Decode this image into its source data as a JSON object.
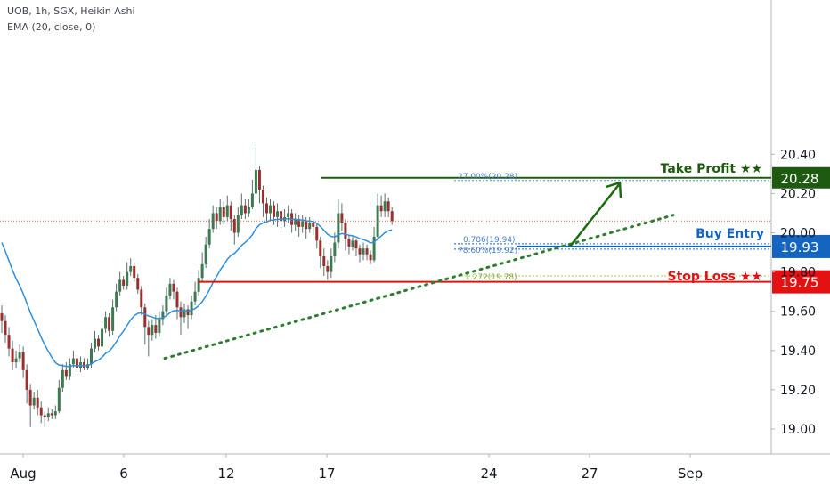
{
  "header": {
    "line1": "UOB, 1h, SGX, Heikin Ashi",
    "line2": "EMA (20, close, 0)"
  },
  "chart_data": {
    "type": "candlestick",
    "ylim": [
      18.95,
      20.48
    ],
    "y_ticks": [
      {
        "label": "20.40",
        "value": 20.4
      },
      {
        "label": "20.20",
        "value": 20.2
      },
      {
        "label": "20.00",
        "value": 20.0
      },
      {
        "label": "19.80",
        "value": 19.8
      },
      {
        "label": "19.60",
        "value": 19.6
      },
      {
        "label": "19.40",
        "value": 19.4
      },
      {
        "label": "19.20",
        "value": 19.2
      },
      {
        "label": "19.00",
        "value": 19.0
      }
    ],
    "x_ticks": [
      "Aug",
      "6",
      "12",
      "17",
      "24",
      "27",
      "Sep"
    ],
    "current_price": 20.06,
    "candles": [
      [
        19.59,
        19.55,
        19.63,
        19.49
      ],
      [
        19.55,
        19.48,
        19.58,
        19.44
      ],
      [
        19.48,
        19.41,
        19.52,
        19.37
      ],
      [
        19.41,
        19.34,
        19.45,
        19.3
      ],
      [
        19.34,
        19.36,
        19.4,
        19.31
      ],
      [
        19.36,
        19.39,
        19.43,
        19.34
      ],
      [
        19.39,
        19.3,
        19.42,
        19.26
      ],
      [
        19.3,
        19.2,
        19.33,
        19.13
      ],
      [
        19.2,
        19.12,
        19.23,
        19.01
      ],
      [
        19.12,
        19.16,
        19.19,
        19.1
      ],
      [
        19.16,
        19.11,
        19.2,
        19.07
      ],
      [
        19.11,
        19.07,
        19.14,
        19.03
      ],
      [
        19.07,
        19.06,
        19.09,
        19.01
      ],
      [
        19.06,
        19.08,
        19.11,
        19.04
      ],
      [
        19.08,
        19.07,
        19.1,
        19.05
      ],
      [
        19.07,
        19.09,
        19.12,
        19.05
      ],
      [
        19.09,
        19.21,
        19.25,
        19.08
      ],
      [
        19.21,
        19.3,
        19.33,
        19.19
      ],
      [
        19.3,
        19.27,
        19.34,
        19.25
      ],
      [
        19.27,
        19.33,
        19.36,
        19.25
      ],
      [
        19.33,
        19.36,
        19.4,
        19.31
      ],
      [
        19.36,
        19.31,
        19.38,
        19.29
      ],
      [
        19.31,
        19.34,
        19.37,
        19.29
      ],
      [
        19.34,
        19.31,
        19.36,
        19.3
      ],
      [
        19.31,
        19.33,
        19.36,
        19.3
      ],
      [
        19.33,
        19.41,
        19.44,
        19.31
      ],
      [
        19.41,
        19.46,
        19.5,
        19.39
      ],
      [
        19.46,
        19.42,
        19.48,
        19.4
      ],
      [
        19.42,
        19.51,
        19.55,
        19.41
      ],
      [
        19.51,
        19.57,
        19.6,
        19.49
      ],
      [
        19.57,
        19.5,
        19.59,
        19.47
      ],
      [
        19.5,
        19.62,
        19.66,
        19.48
      ],
      [
        19.62,
        19.7,
        19.74,
        19.6
      ],
      [
        19.7,
        19.76,
        19.8,
        19.68
      ],
      [
        19.76,
        19.73,
        19.78,
        19.71
      ],
      [
        19.73,
        19.8,
        19.85,
        19.71
      ],
      [
        19.8,
        19.83,
        19.87,
        19.78
      ],
      [
        19.83,
        19.77,
        19.85,
        19.75
      ],
      [
        19.77,
        19.71,
        19.79,
        19.69
      ],
      [
        19.71,
        19.62,
        19.73,
        19.58
      ],
      [
        19.62,
        19.52,
        19.64,
        19.43
      ],
      [
        19.52,
        19.48,
        19.55,
        19.37
      ],
      [
        19.48,
        19.53,
        19.56,
        19.45
      ],
      [
        19.53,
        19.49,
        19.58,
        19.46
      ],
      [
        19.49,
        19.56,
        19.6,
        19.47
      ],
      [
        19.56,
        19.6,
        19.63,
        19.53
      ],
      [
        19.6,
        19.68,
        19.72,
        19.58
      ],
      [
        19.68,
        19.74,
        19.77,
        19.66
      ],
      [
        19.74,
        19.7,
        19.76,
        19.66
      ],
      [
        19.7,
        19.62,
        19.72,
        19.56
      ],
      [
        19.62,
        19.57,
        19.65,
        19.48
      ],
      [
        19.57,
        19.61,
        19.64,
        19.54
      ],
      [
        19.61,
        19.58,
        19.63,
        19.51
      ],
      [
        19.58,
        19.65,
        19.68,
        19.56
      ],
      [
        19.65,
        19.7,
        19.75,
        19.63
      ],
      [
        19.7,
        19.77,
        19.81,
        19.68
      ],
      [
        19.77,
        19.84,
        19.9,
        19.75
      ],
      [
        19.84,
        19.94,
        19.98,
        19.82
      ],
      [
        19.94,
        20.02,
        20.07,
        19.92
      ],
      [
        20.02,
        20.1,
        20.14,
        20.0
      ],
      [
        20.1,
        20.06,
        20.13,
        20.02
      ],
      [
        20.06,
        20.13,
        20.17,
        20.04
      ],
      [
        20.13,
        20.08,
        20.16,
        20.04
      ],
      [
        20.08,
        20.14,
        20.19,
        20.06
      ],
      [
        20.14,
        20.07,
        20.16,
        20.01
      ],
      [
        20.07,
        20.0,
        20.09,
        19.94
      ],
      [
        20.0,
        20.09,
        20.13,
        19.98
      ],
      [
        20.09,
        20.14,
        20.2,
        20.07
      ],
      [
        20.14,
        20.1,
        20.17,
        20.07
      ],
      [
        20.1,
        20.13,
        20.17,
        20.08
      ],
      [
        20.13,
        20.2,
        20.27,
        20.12
      ],
      [
        20.2,
        20.32,
        20.45,
        20.18
      ],
      [
        20.32,
        20.22,
        20.34,
        20.15
      ],
      [
        20.22,
        20.15,
        20.24,
        20.08
      ],
      [
        20.15,
        20.1,
        20.18,
        20.06
      ],
      [
        20.1,
        20.14,
        20.17,
        20.06
      ],
      [
        20.14,
        20.08,
        20.16,
        20.04
      ],
      [
        20.08,
        20.11,
        20.15,
        20.03
      ],
      [
        20.11,
        20.06,
        20.13,
        20.0
      ],
      [
        20.06,
        20.08,
        20.12,
        20.03
      ],
      [
        20.08,
        20.1,
        20.14,
        20.05
      ],
      [
        20.1,
        20.04,
        20.12,
        20.0
      ],
      [
        20.04,
        20.07,
        20.1,
        20.01
      ],
      [
        20.07,
        20.03,
        20.09,
        19.98
      ],
      [
        20.03,
        20.06,
        20.09,
        20.0
      ],
      [
        20.06,
        20.02,
        20.08,
        19.97
      ],
      [
        20.02,
        20.05,
        20.08,
        20.0
      ],
      [
        20.05,
        20.03,
        20.07,
        19.99
      ],
      [
        20.03,
        19.96,
        20.05,
        19.92
      ],
      [
        19.96,
        19.88,
        19.98,
        19.82
      ],
      [
        19.88,
        19.83,
        19.92,
        19.78
      ],
      [
        19.83,
        19.8,
        19.86,
        19.76
      ],
      [
        19.8,
        19.88,
        19.92,
        19.77
      ],
      [
        19.88,
        19.95,
        20.0,
        19.85
      ],
      [
        19.95,
        20.1,
        20.17,
        19.92
      ],
      [
        20.1,
        20.05,
        20.15,
        20.01
      ],
      [
        20.05,
        19.97,
        20.07,
        19.91
      ],
      [
        19.97,
        19.93,
        19.99,
        19.89
      ],
      [
        19.93,
        19.96,
        19.98,
        19.91
      ],
      [
        19.96,
        19.92,
        19.97,
        19.88
      ],
      [
        19.92,
        19.89,
        19.94,
        19.85
      ],
      [
        19.89,
        19.92,
        19.95,
        19.86
      ],
      [
        19.92,
        19.89,
        19.94,
        19.86
      ],
      [
        19.89,
        19.86,
        19.91,
        19.84
      ],
      [
        19.86,
        19.98,
        20.03,
        19.85
      ],
      [
        19.98,
        20.14,
        20.2,
        19.96
      ],
      [
        20.14,
        20.11,
        20.19,
        20.08
      ],
      [
        20.11,
        20.16,
        20.2,
        20.08
      ],
      [
        20.16,
        20.11,
        20.18,
        20.08
      ],
      [
        20.11,
        20.06,
        20.13,
        20.04
      ]
    ],
    "ema_label": "EMA (20, close, 0)",
    "annotations": {
      "take_profit": {
        "label": "Take Profit ★★",
        "price": 20.28,
        "price_label": "20.28",
        "fib_label": "27.00%(20.28)",
        "color": "#1e5a0f"
      },
      "buy_entry": {
        "label": "Buy Entry",
        "price": 19.93,
        "price_label": "19.93",
        "fib_labels": [
          "0.786(19.94)",
          "78.60%(19.92)"
        ],
        "color": "#1565c0"
      },
      "stop_loss": {
        "label": "Stop Loss ★★",
        "price": 19.75,
        "price_label": "19.75",
        "fib_label": "1.272(19.78)",
        "fib_price": 19.78,
        "color": "#e31212"
      }
    },
    "trendline": {
      "from_index": 40,
      "from_price": 19.36,
      "to_index": 163,
      "to_price": 20.09
    },
    "arrow": {
      "from_index": 140,
      "from_price": 19.93,
      "to_index": 152,
      "to_price": 20.26
    }
  }
}
